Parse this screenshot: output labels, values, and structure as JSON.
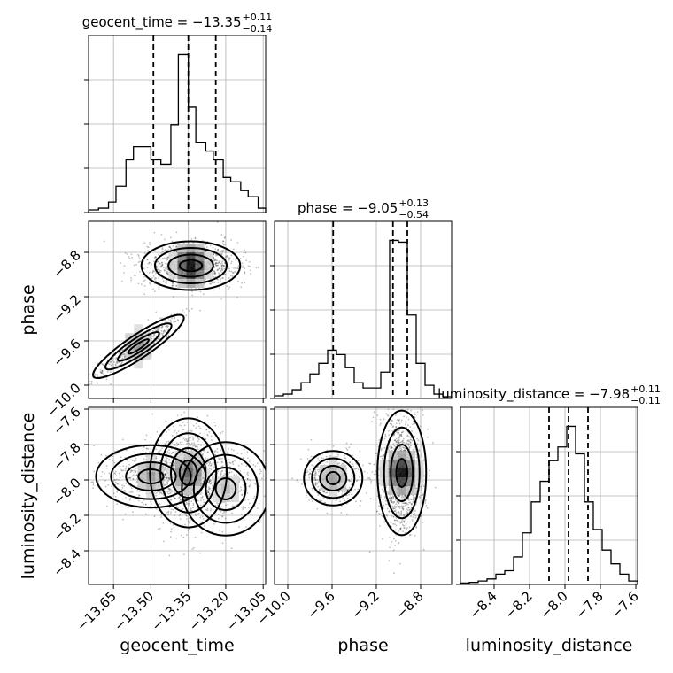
{
  "chart_data": {
    "type": "corner",
    "parameters": [
      {
        "name": "geocent_time",
        "axis_label": "geocent_time",
        "title_main": "geocent_time = −13.35",
        "title_sup": "+0.11",
        "title_sub": "−0.14",
        "range": [
          -13.75,
          -13.04
        ],
        "ticks": [
          -13.65,
          -13.5,
          -13.35,
          -13.2,
          -13.05
        ],
        "tick_labels": [
          "−13.65",
          "−13.50",
          "−13.35",
          "−13.20",
          "−13.05"
        ],
        "quantiles": [
          -13.49,
          -13.35,
          -13.24
        ],
        "hist_edges": [
          -13.75,
          -13.71,
          -13.67,
          -13.64,
          -13.6,
          -13.57,
          -13.53,
          -13.5,
          -13.46,
          -13.42,
          -13.39,
          -13.35,
          -13.32,
          -13.28,
          -13.25,
          -13.21,
          -13.18,
          -13.14,
          -13.11,
          -13.07,
          -13.04
        ],
        "hist_values": [
          3,
          5,
          12,
          30,
          60,
          75,
          75,
          60,
          55,
          100,
          180,
          120,
          80,
          70,
          60,
          40,
          35,
          25,
          18,
          5
        ]
      },
      {
        "name": "phase",
        "axis_label": "phase",
        "title_main": "phase = −9.05",
        "title_sup": "+0.13",
        "title_sub": "−0.54",
        "range": [
          -10.12,
          -8.52
        ],
        "ticks": [
          -10.0,
          -9.6,
          -9.2,
          -8.8
        ],
        "tick_labels": [
          "−10.0",
          "−9.6",
          "−9.2",
          "−8.8"
        ],
        "quantiles": [
          -9.59,
          -9.05,
          -8.92
        ],
        "hist_edges": [
          -10.12,
          -10.04,
          -9.96,
          -9.88,
          -9.8,
          -9.72,
          -9.64,
          -9.56,
          -9.48,
          -9.4,
          -9.32,
          -9.24,
          -9.16,
          -9.08,
          -9.0,
          -8.92,
          -8.84,
          -8.76,
          -8.68,
          -8.6,
          -8.52
        ],
        "hist_values": [
          3,
          5,
          10,
          18,
          28,
          40,
          55,
          50,
          35,
          18,
          12,
          12,
          30,
          180,
          178,
          95,
          40,
          15,
          5,
          2
        ]
      },
      {
        "name": "luminosity_distance",
        "axis_label": "luminosity_distance",
        "title_main": "luminosity_distance = −7.98",
        "title_sup": "+0.11",
        "title_sub": "−0.11",
        "range": [
          -8.59,
          -7.59
        ],
        "ticks": [
          -8.4,
          -8.2,
          -8.0,
          -7.8,
          -7.6
        ],
        "tick_labels": [
          "−8.4",
          "−8.2",
          "−8.0",
          "−7.8",
          "−7.6"
        ],
        "quantiles": [
          -8.09,
          -7.98,
          -7.87
        ],
        "hist_edges": [
          -8.59,
          -8.54,
          -8.49,
          -8.44,
          -8.39,
          -8.34,
          -8.29,
          -8.24,
          -8.19,
          -8.14,
          -8.09,
          -8.04,
          -7.99,
          -7.94,
          -7.89,
          -7.84,
          -7.79,
          -7.74,
          -7.69,
          -7.64,
          -7.59
        ],
        "hist_values": [
          2,
          3,
          5,
          8,
          15,
          20,
          40,
          75,
          120,
          150,
          180,
          200,
          230,
          190,
          120,
          80,
          50,
          30,
          15,
          5
        ]
      }
    ],
    "pair_modes": {
      "geocent_time|phase": [
        {
          "x": -13.34,
          "y": -8.92,
          "sx": 0.09,
          "sy": 0.1,
          "rho": 0.0,
          "w": 0.72
        },
        {
          "x": -13.55,
          "y": -9.65,
          "sx": 0.08,
          "sy": 0.13,
          "rho": 0.93,
          "w": 0.28
        }
      ],
      "geocent_time|luminosity_distance": [
        {
          "x": -13.35,
          "y": -7.96,
          "sx": 0.07,
          "sy": 0.14,
          "rho": 0.0,
          "w": 0.5
        },
        {
          "x": -13.5,
          "y": -7.98,
          "sx": 0.1,
          "sy": 0.08,
          "rho": 0.0,
          "w": 0.3
        },
        {
          "x": -13.2,
          "y": -8.05,
          "sx": 0.08,
          "sy": 0.12,
          "rho": 0.0,
          "w": 0.2
        }
      ],
      "phase|luminosity_distance": [
        {
          "x": -8.97,
          "y": -7.96,
          "sx": 0.1,
          "sy": 0.16,
          "rho": 0.0,
          "w": 0.72
        },
        {
          "x": -9.59,
          "y": -7.99,
          "sx": 0.12,
          "sy": 0.07,
          "rho": 0.0,
          "w": 0.28
        }
      ]
    },
    "grid": true,
    "show_quantiles": true
  }
}
